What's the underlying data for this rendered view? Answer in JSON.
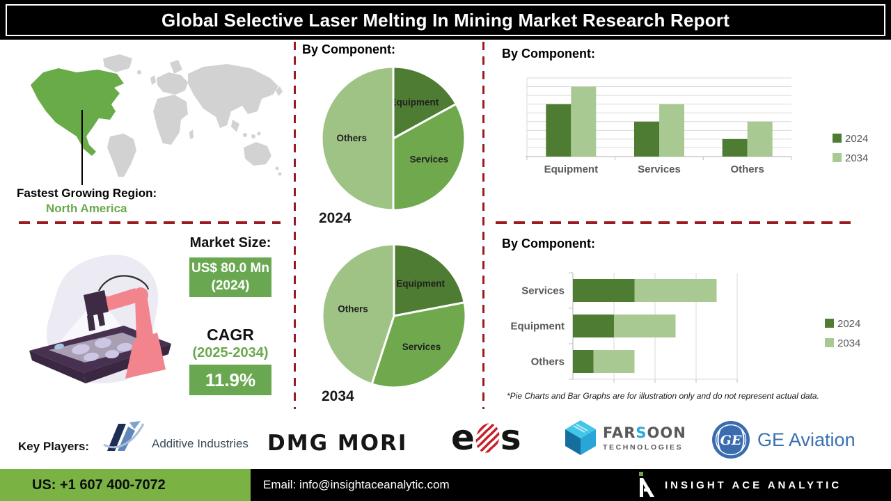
{
  "header": {
    "title": "Global Selective Laser Melting In Mining Market Research Report"
  },
  "map": {
    "label": "Fastest Growing Region:",
    "region": "North America"
  },
  "market": {
    "title": "Market Size:",
    "value": "US$ 80.0 Mn",
    "value_year": "(2024)",
    "cagr_label": "CAGR",
    "cagr_period": "(2025-2034)",
    "cagr_value": "11.9%"
  },
  "footnote": "*Pie Charts and Bar Graphs are for illustration only and do not represent actual data.",
  "key_players": {
    "label": "Key Players:",
    "additive_industries": "Additive Industries",
    "dmg_mori": "DMG MORI",
    "eos_e": "e",
    "eos_s": "s",
    "farsoon_far": "FAR",
    "farsoon_s": "S",
    "farsoon_oon": "OON",
    "farsoon_tech": "TECHNOLOGIES",
    "ge_monogram": "GE",
    "ge_aviation": "GE Aviation"
  },
  "footer": {
    "phone": "US: +1 607 400-7072",
    "email": "Email: info@insightaceanalytic.com",
    "brand": "INSIGHT ACE ANALYTIC"
  },
  "colors": {
    "dark_green": "#4e7c32",
    "mid_green": "#6fa84d",
    "light_green": "#9fc285",
    "bar_light_green": "#a9c993",
    "accent_green": "#6aa84d",
    "box_green": "#69a851",
    "footer_green": "#7ab344",
    "divider_red": "#9b1c20",
    "map_green": "#68ab48",
    "map_gray": "#d2d2d2"
  },
  "chart_data": [
    {
      "id": "pie-2024",
      "type": "pie",
      "title": "By Component:",
      "year": "2024",
      "labels": [
        "Equipment",
        "Services",
        "Others"
      ],
      "values": [
        17,
        33,
        50
      ],
      "colors": [
        "#4e7c32",
        "#6fa84d",
        "#9fc285"
      ],
      "note": "illustrative only"
    },
    {
      "id": "pie-2034",
      "type": "pie",
      "year": "2034",
      "labels": [
        "Equipment",
        "Services",
        "Others"
      ],
      "values": [
        22,
        33,
        45
      ],
      "colors": [
        "#4e7c32",
        "#6fa84d",
        "#9fc285"
      ],
      "note": "illustrative only"
    },
    {
      "id": "col-by-component",
      "type": "bar",
      "title": "By Component:",
      "categories": [
        "Equipment",
        "Services",
        "Others"
      ],
      "series": [
        {
          "name": "2024",
          "color": "#4e7c32",
          "values": [
            6,
            4,
            2
          ]
        },
        {
          "name": "2034",
          "color": "#a9c993",
          "values": [
            8,
            6,
            4
          ]
        }
      ],
      "ylim": [
        0,
        9
      ],
      "grid_step": 1,
      "legend_position": "right",
      "note": "illustrative only"
    },
    {
      "id": "hbar-by-component",
      "type": "bar-horizontal-stacked",
      "title": "By Component:",
      "categories": [
        "Services",
        "Equipment",
        "Others"
      ],
      "series": [
        {
          "name": "2024",
          "color": "#4e7c32",
          "values": [
            1.5,
            1.0,
            0.5
          ]
        },
        {
          "name": "2034",
          "color": "#a9c993",
          "values": [
            2.0,
            1.5,
            1.0
          ]
        }
      ],
      "xlim": [
        0,
        4
      ],
      "grid_step": 1,
      "legend_position": "right",
      "note": "illustrative only"
    }
  ]
}
